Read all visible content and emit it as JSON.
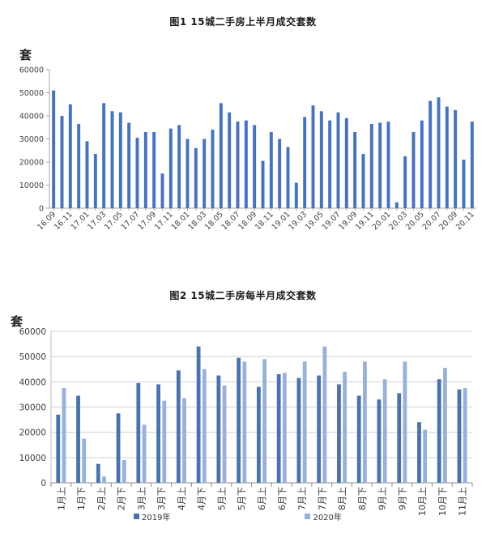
{
  "chart_data": [
    {
      "type": "bar",
      "title": "图1  15城二手房上半月成交套数",
      "ylabel": "套",
      "ylim": [
        0,
        60000
      ],
      "yticks": [
        "0",
        "10000",
        "20000",
        "30000",
        "40000",
        "50000",
        "60000"
      ],
      "xtick_labels": [
        "16.09",
        "16.11",
        "17.01",
        "17.03",
        "17.05",
        "17.07",
        "17.09",
        "17.11",
        "18.01",
        "18.03",
        "18.05",
        "18.07",
        "18.09",
        "18.11",
        "19.01",
        "19.03",
        "19.05",
        "19.07",
        "19.09",
        "19.11",
        "20.01",
        "20.03",
        "20.05",
        "20.07",
        "20.09",
        "20.11"
      ],
      "categories": [
        "16.09",
        "16.10",
        "16.11",
        "16.12",
        "17.01",
        "17.02",
        "17.03",
        "17.04",
        "17.05",
        "17.06",
        "17.07",
        "17.08",
        "17.09",
        "17.10",
        "17.11",
        "17.12",
        "18.01",
        "18.02",
        "18.03",
        "18.04",
        "18.05",
        "18.06",
        "18.07",
        "18.08",
        "18.09",
        "18.10",
        "18.11",
        "18.12",
        "19.01",
        "19.02",
        "19.03",
        "19.04",
        "19.05",
        "19.06",
        "19.07",
        "19.08",
        "19.09",
        "19.10",
        "19.11",
        "19.12",
        "20.01",
        "20.02",
        "20.03",
        "20.04",
        "20.05",
        "20.06",
        "20.07",
        "20.08",
        "20.09",
        "20.10",
        "20.11"
      ],
      "values": [
        51000,
        40000,
        45000,
        36500,
        29000,
        23500,
        45500,
        42000,
        41500,
        37000,
        30500,
        33000,
        33000,
        15000,
        34500,
        36000,
        30000,
        26000,
        30000,
        34000,
        45500,
        41500,
        37500,
        38000,
        36000,
        20500,
        33000,
        30000,
        26500,
        11000,
        39500,
        44500,
        42000,
        38000,
        41500,
        39000,
        33000,
        23500,
        36500,
        37000,
        37500,
        2500,
        22500,
        33000,
        38000,
        46500,
        48000,
        44000,
        42500,
        21000,
        37500
      ],
      "color": "#4472c4",
      "grid": false
    },
    {
      "type": "bar",
      "title": "图2  15城二手房每半月成交套数",
      "ylabel": "套",
      "ylim": [
        0,
        60000
      ],
      "yticks": [
        "0",
        "10000",
        "20000",
        "30000",
        "40000",
        "50000",
        "60000"
      ],
      "categories": [
        "1月上",
        "1月下",
        "2月上",
        "2月下",
        "3月上",
        "3月下",
        "4月上",
        "4月下",
        "5月上",
        "5月下",
        "6月上",
        "6月下",
        "7月上",
        "7月下",
        "8月上",
        "8月下",
        "9月上",
        "9月下",
        "10月上",
        "10月下",
        "11月上"
      ],
      "series": [
        {
          "name": "2019年",
          "color": "#4a72b0",
          "values": [
            27000,
            34500,
            7500,
            27500,
            39500,
            39000,
            44500,
            54000,
            42500,
            49500,
            38000,
            43000,
            41500,
            42500,
            39000,
            34500,
            33000,
            35500,
            24000,
            41000,
            37000
          ]
        },
        {
          "name": "2020年",
          "color": "#97b1db",
          "values": [
            37500,
            17500,
            2500,
            9000,
            23000,
            32500,
            33500,
            45000,
            38500,
            48000,
            49000,
            43500,
            48000,
            54000,
            44000,
            48000,
            41000,
            48000,
            21000,
            45500,
            37500
          ]
        }
      ],
      "grid": true,
      "legend": "bottom"
    }
  ]
}
